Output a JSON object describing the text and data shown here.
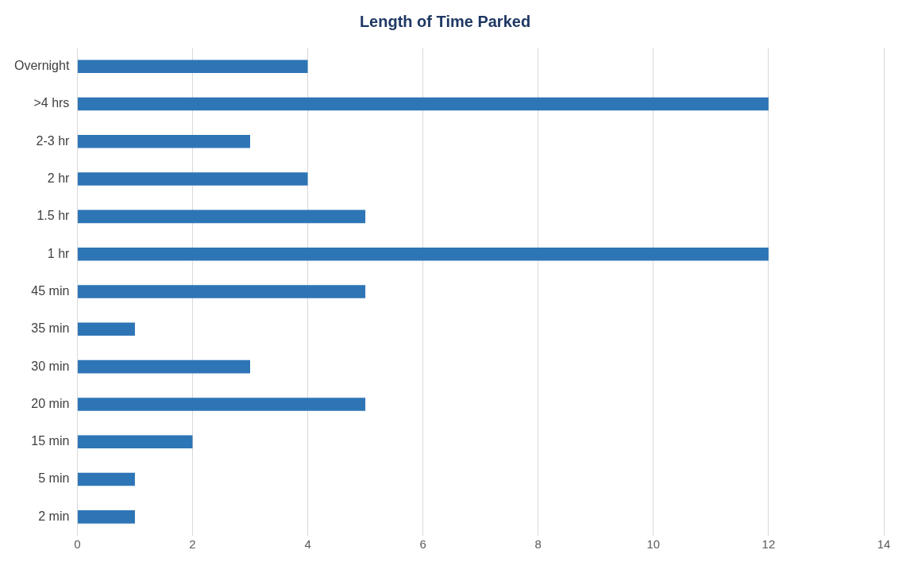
{
  "chart_data": {
    "type": "bar",
    "orientation": "horizontal",
    "title": "Length of Time Parked",
    "categories": [
      "Overnight",
      ">4 hrs",
      "2-3 hr",
      "2 hr",
      "1.5 hr",
      "1 hr",
      "45 min",
      "35 min",
      "30 min",
      "20 min",
      "15 min",
      "5 min",
      "2 min"
    ],
    "values": [
      4,
      12,
      3,
      4,
      5,
      12,
      5,
      1,
      3,
      5,
      2,
      1,
      1
    ],
    "color": "#2e75b6",
    "xlim": [
      0,
      14
    ],
    "xticks": [
      0,
      2,
      4,
      6,
      8,
      10,
      12,
      14
    ],
    "grid": "x",
    "legend": false
  }
}
